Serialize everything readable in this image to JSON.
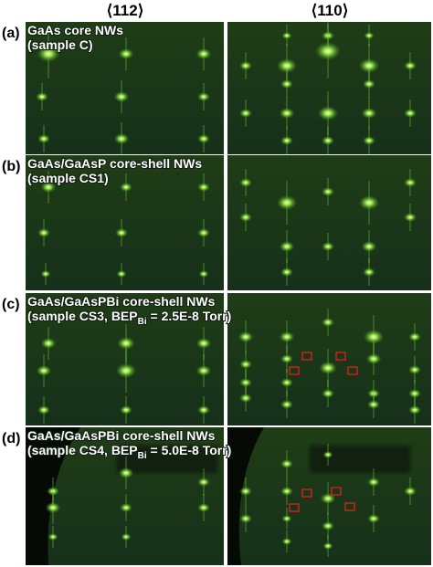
{
  "column_headers": [
    "⟨112⟩",
    "⟨110⟩"
  ],
  "panels": [
    {
      "label": "(a)",
      "title": "GaAs core NWs",
      "sample": "(sample C)"
    },
    {
      "label": "(b)",
      "title": "GaAs/GaAsP core-shell NWs",
      "sample": "(sample CS1)"
    },
    {
      "label": "(c)",
      "title": "GaAs/GaAsPBi core-shell NWs",
      "sample": "(sample CS3, BEP",
      "subscript": "Bi",
      "sample_end": " = 2.5E-8 Torr)"
    },
    {
      "label": "(d)",
      "title": "GaAs/GaAsPBi core-shell NWs",
      "sample": "(sample CS4, BEP",
      "subscript": "Bi",
      "sample_end": " = 5.0E-8 Torr)"
    }
  ]
}
